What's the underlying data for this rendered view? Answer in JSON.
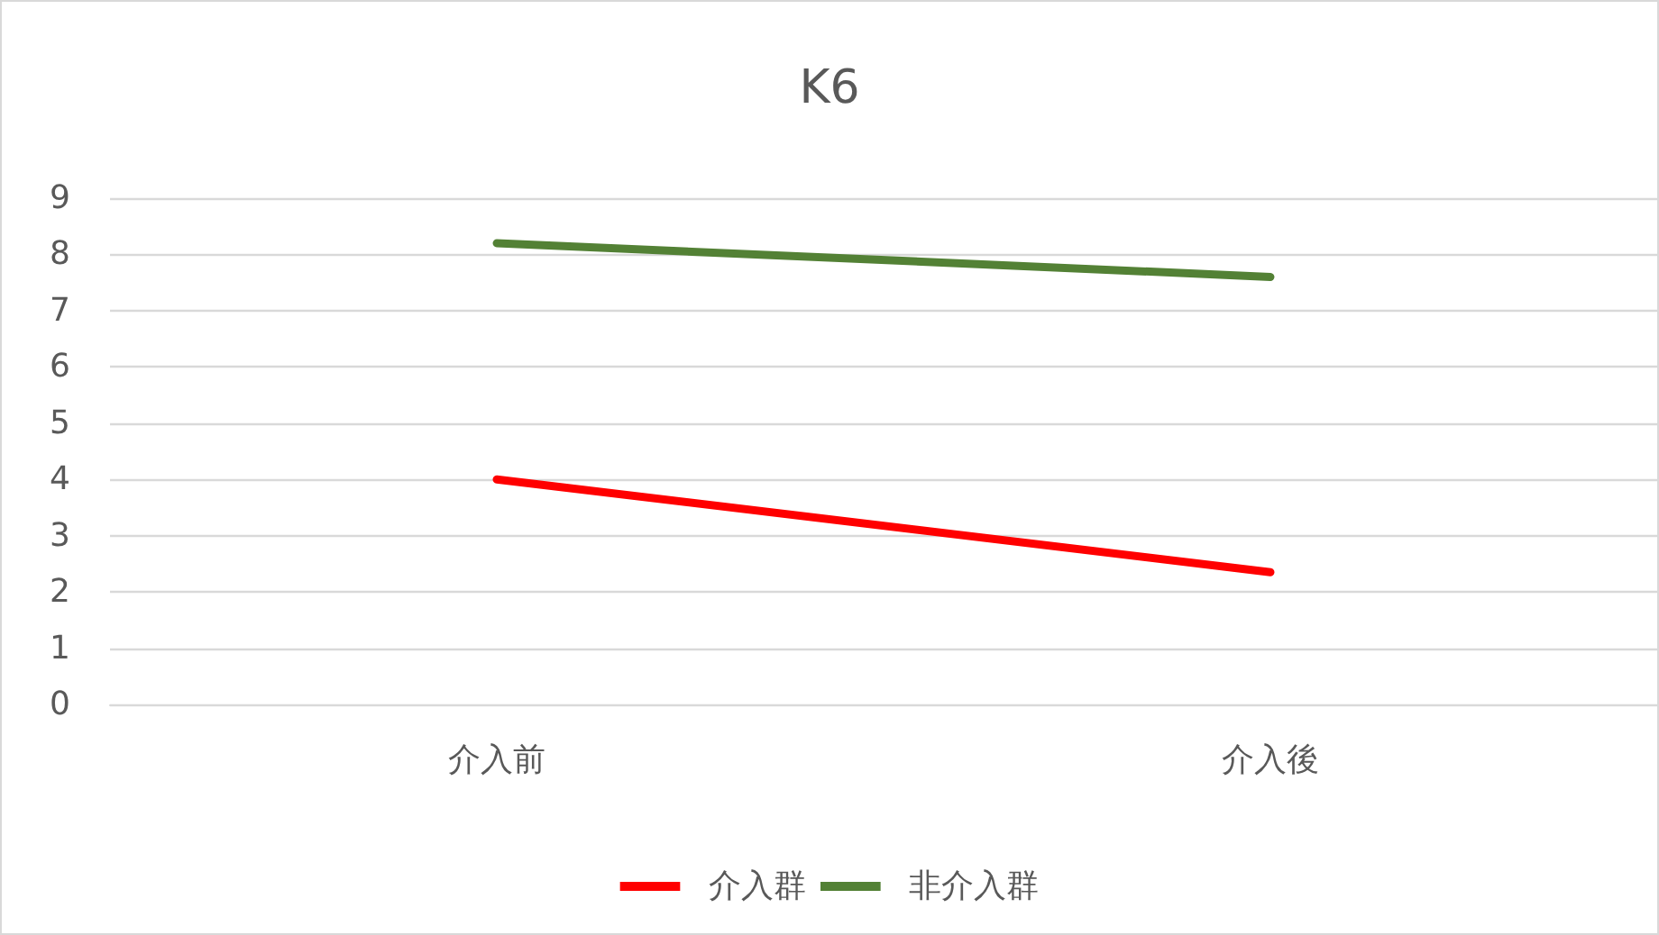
{
  "chart_data": {
    "type": "line",
    "title": "K6",
    "categories": [
      "介入前",
      "介入後"
    ],
    "series": [
      {
        "name": "介入群",
        "color": "#ff0000",
        "values": [
          4.0,
          2.35
        ]
      },
      {
        "name": "非介入群",
        "color": "#538135",
        "values": [
          8.2,
          7.6
        ]
      }
    ],
    "ylim": [
      0,
      9
    ],
    "yticks": [
      0,
      1,
      2,
      3,
      4,
      5,
      6,
      7,
      8,
      9
    ],
    "grid": "y",
    "legend": "bottom",
    "marker": "none",
    "line_style": "solid"
  }
}
